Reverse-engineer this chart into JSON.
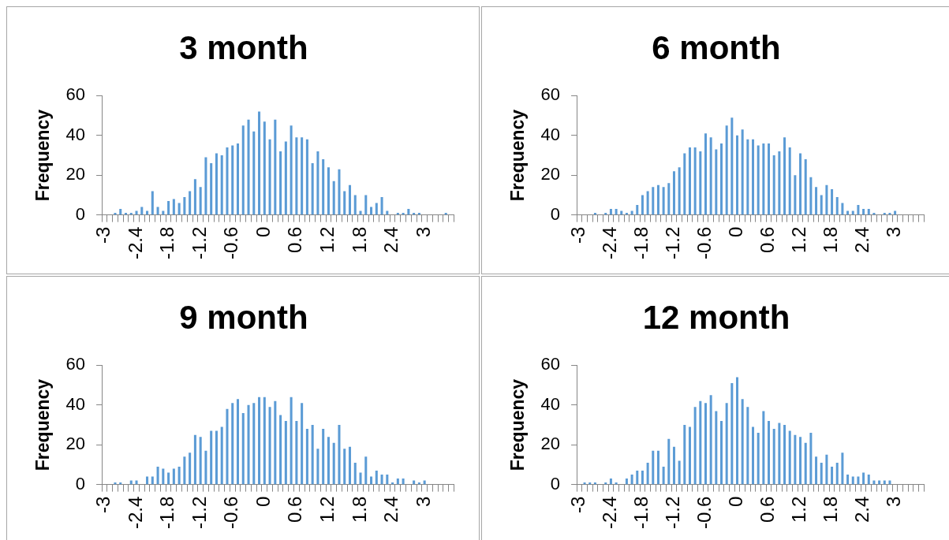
{
  "chart_data": [
    {
      "type": "bar",
      "title": "3 month",
      "ylabel": "Frequency",
      "color": "#5b9bd5",
      "ylim": [
        0,
        60
      ],
      "yticks": [
        0,
        20,
        40,
        60
      ],
      "grid": false,
      "categories": [
        "-3",
        null,
        null,
        null,
        null,
        null,
        "-2.4",
        null,
        null,
        null,
        null,
        null,
        "-1.8",
        null,
        null,
        null,
        null,
        null,
        "-1.2",
        null,
        null,
        null,
        null,
        null,
        "-0.6",
        null,
        null,
        null,
        null,
        null,
        "0",
        null,
        null,
        null,
        null,
        null,
        "0.6",
        null,
        null,
        null,
        null,
        null,
        "1.2",
        null,
        null,
        null,
        null,
        null,
        "1.8",
        null,
        null,
        null,
        null,
        null,
        "2.4",
        null,
        null,
        null,
        null,
        null,
        "3",
        null,
        null,
        null,
        null,
        null
      ],
      "values": [
        0,
        0,
        1,
        3,
        1,
        1,
        2,
        4,
        2,
        12,
        4,
        2,
        7,
        8,
        6,
        9,
        12,
        18,
        14,
        29,
        26,
        31,
        30,
        34,
        35,
        36,
        45,
        48,
        42,
        52,
        47,
        38,
        48,
        32,
        37,
        45,
        39,
        39,
        38,
        26,
        32,
        28,
        24,
        17,
        23,
        12,
        15,
        10,
        2,
        10,
        4,
        6,
        9,
        2,
        0,
        1,
        1,
        3,
        1,
        1,
        0,
        0,
        0,
        0,
        1,
        0
      ]
    },
    {
      "type": "bar",
      "title": "6 month",
      "ylabel": "Frequency",
      "color": "#5b9bd5",
      "ylim": [
        0,
        60
      ],
      "yticks": [
        0,
        20,
        40,
        60
      ],
      "grid": false,
      "categories": [
        "-3",
        null,
        null,
        null,
        null,
        null,
        "-2.4",
        null,
        null,
        null,
        null,
        null,
        "-1.8",
        null,
        null,
        null,
        null,
        null,
        "-1.2",
        null,
        null,
        null,
        null,
        null,
        "-0.6",
        null,
        null,
        null,
        null,
        null,
        "0",
        null,
        null,
        null,
        null,
        null,
        "0.6",
        null,
        null,
        null,
        null,
        null,
        "1.2",
        null,
        null,
        null,
        null,
        null,
        "1.8",
        null,
        null,
        null,
        null,
        null,
        "2.4",
        null,
        null,
        null,
        null,
        null,
        "3",
        null,
        null,
        null,
        null,
        null
      ],
      "values": [
        0,
        0,
        0,
        1,
        0,
        1,
        3,
        3,
        2,
        1,
        2,
        5,
        10,
        12,
        14,
        15,
        14,
        16,
        22,
        24,
        31,
        34,
        34,
        32,
        41,
        39,
        33,
        36,
        45,
        49,
        40,
        43,
        38,
        38,
        35,
        36,
        36,
        30,
        32,
        39,
        34,
        20,
        31,
        28,
        19,
        14,
        10,
        15,
        13,
        9,
        6,
        2,
        2,
        5,
        3,
        3,
        1,
        0,
        1,
        1,
        2,
        0,
        0,
        0,
        0,
        0
      ]
    },
    {
      "type": "bar",
      "title": "9 month",
      "ylabel": "Frequency",
      "color": "#5b9bd5",
      "ylim": [
        0,
        60
      ],
      "yticks": [
        0,
        20,
        40,
        60
      ],
      "grid": false,
      "categories": [
        "-3",
        null,
        null,
        null,
        null,
        null,
        "-2.4",
        null,
        null,
        null,
        null,
        null,
        "-1.8",
        null,
        null,
        null,
        null,
        null,
        "-1.2",
        null,
        null,
        null,
        null,
        null,
        "-0.6",
        null,
        null,
        null,
        null,
        null,
        "0",
        null,
        null,
        null,
        null,
        null,
        "0.6",
        null,
        null,
        null,
        null,
        null,
        "1.2",
        null,
        null,
        null,
        null,
        null,
        "1.8",
        null,
        null,
        null,
        null,
        null,
        "2.4",
        null,
        null,
        null,
        null,
        null,
        "3",
        null,
        null,
        null,
        null,
        null
      ],
      "values": [
        0,
        0,
        1,
        1,
        0,
        2,
        2,
        0,
        4,
        4,
        9,
        8,
        6,
        8,
        9,
        14,
        16,
        25,
        24,
        17,
        27,
        27,
        29,
        38,
        41,
        43,
        36,
        40,
        41,
        44,
        44,
        39,
        42,
        35,
        32,
        44,
        32,
        41,
        28,
        30,
        18,
        28,
        24,
        21,
        30,
        18,
        19,
        11,
        6,
        14,
        4,
        7,
        5,
        5,
        1,
        3,
        3,
        0,
        2,
        1,
        2,
        0,
        0,
        0,
        0,
        0
      ]
    },
    {
      "type": "bar",
      "title": "12 month",
      "ylabel": "Frequency",
      "color": "#5b9bd5",
      "ylim": [
        0,
        60
      ],
      "yticks": [
        0,
        20,
        40,
        60
      ],
      "grid": false,
      "categories": [
        "-3",
        null,
        null,
        null,
        null,
        null,
        "-2.4",
        null,
        null,
        null,
        null,
        null,
        "-1.8",
        null,
        null,
        null,
        null,
        null,
        "-1.2",
        null,
        null,
        null,
        null,
        null,
        "-0.6",
        null,
        null,
        null,
        null,
        null,
        "0",
        null,
        null,
        null,
        null,
        null,
        "0.6",
        null,
        null,
        null,
        null,
        null,
        "1.2",
        null,
        null,
        null,
        null,
        null,
        "1.8",
        null,
        null,
        null,
        null,
        null,
        "2.4",
        null,
        null,
        null,
        null,
        null,
        "3",
        null,
        null,
        null,
        null,
        null
      ],
      "values": [
        0,
        1,
        1,
        1,
        0,
        1,
        3,
        1,
        0,
        3,
        5,
        7,
        7,
        11,
        17,
        17,
        9,
        23,
        19,
        12,
        30,
        29,
        39,
        42,
        41,
        45,
        37,
        32,
        41,
        51,
        54,
        43,
        39,
        29,
        26,
        37,
        32,
        28,
        31,
        30,
        27,
        25,
        24,
        21,
        26,
        14,
        11,
        15,
        9,
        11,
        16,
        5,
        4,
        4,
        6,
        5,
        2,
        2,
        2,
        2,
        0,
        0,
        0,
        0,
        0,
        0
      ]
    }
  ]
}
